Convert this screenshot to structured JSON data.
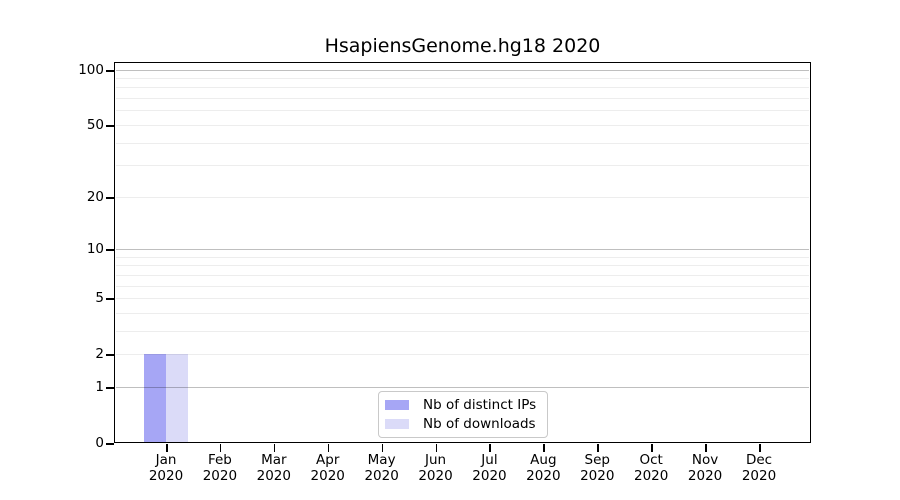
{
  "chart_data": {
    "type": "bar",
    "title": "HsapiensGenome.hg18 2020",
    "xlabel": "",
    "ylabel": "",
    "categories": [
      {
        "month": "Jan",
        "year": "2020"
      },
      {
        "month": "Feb",
        "year": "2020"
      },
      {
        "month": "Mar",
        "year": "2020"
      },
      {
        "month": "Apr",
        "year": "2020"
      },
      {
        "month": "May",
        "year": "2020"
      },
      {
        "month": "Jun",
        "year": "2020"
      },
      {
        "month": "Jul",
        "year": "2020"
      },
      {
        "month": "Aug",
        "year": "2020"
      },
      {
        "month": "Sep",
        "year": "2020"
      },
      {
        "month": "Oct",
        "year": "2020"
      },
      {
        "month": "Nov",
        "year": "2020"
      },
      {
        "month": "Dec",
        "year": "2020"
      }
    ],
    "series": [
      {
        "name": "Nb of distinct IPs",
        "color": "#a6a6f5",
        "values": [
          2,
          0,
          0,
          0,
          0,
          0,
          0,
          0,
          0,
          0,
          0,
          0
        ]
      },
      {
        "name": "Nb of downloads",
        "color": "#dbdbf8",
        "values": [
          2,
          0,
          0,
          0,
          0,
          0,
          0,
          0,
          0,
          0,
          0,
          0
        ]
      }
    ],
    "yscale": "log1p",
    "ylim": [
      0,
      110
    ],
    "yticks": [
      0,
      1,
      2,
      5,
      10,
      20,
      50,
      100
    ],
    "grid": {
      "major_values": [
        1,
        10,
        100
      ],
      "minor_values": [
        2,
        3,
        4,
        5,
        6,
        7,
        8,
        9,
        20,
        30,
        40,
        50,
        60,
        70,
        80,
        90
      ],
      "on": true
    },
    "legend": {
      "position": "bottom-center",
      "border_color": "#c9c9c9",
      "background": "#ffffff"
    },
    "colors": {
      "axis": "#000000",
      "text": "#000000",
      "background": "#ffffff"
    }
  }
}
